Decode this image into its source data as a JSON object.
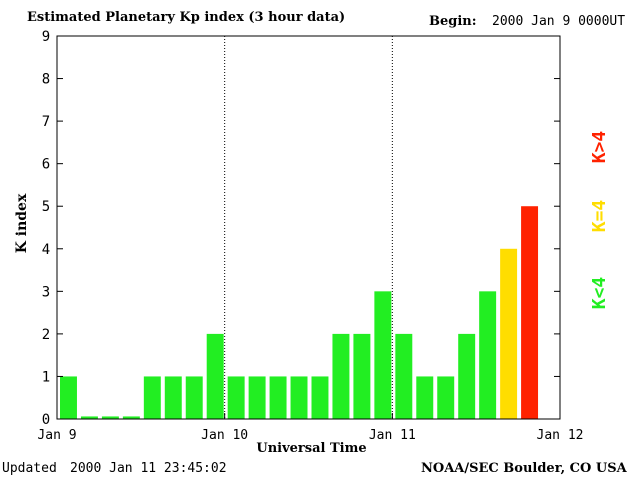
{
  "header": {
    "title": "Estimated Planetary Kp index (3 hour data)",
    "begin_label": "Begin:",
    "begin_value": "2000 Jan 9 0000UT"
  },
  "footer": {
    "updated_label": "Updated",
    "updated_value": "2000 Jan 11 23:45:02",
    "source": "NOAA/SEC Boulder, CO USA"
  },
  "legend": [
    {
      "label": "K<4",
      "color": "#22ee22"
    },
    {
      "label": "K=4",
      "color": "#ffdd00"
    },
    {
      "label": "K>4",
      "color": "#ff2200"
    }
  ],
  "chart_data": {
    "type": "bar",
    "title": "Estimated Planetary Kp index (3 hour data)",
    "xlabel": "Universal Time",
    "ylabel": "K index",
    "ylim": [
      0,
      9
    ],
    "yticks": [
      0,
      1,
      2,
      3,
      4,
      5,
      6,
      7,
      8,
      9
    ],
    "xticks": [
      "Jan 9",
      "Jan 10",
      "Jan 11",
      "Jan 12"
    ],
    "bars_per_day": 8,
    "values": [
      1,
      0,
      0,
      0,
      1,
      1,
      1,
      2,
      1,
      1,
      1,
      1,
      1,
      2,
      2,
      3,
      2,
      1,
      1,
      2,
      3,
      4,
      5
    ],
    "colors": {
      "low": "#22ee22",
      "equal": "#ffdd00",
      "high": "#ff2200"
    },
    "day_separators": [
      "Jan 10",
      "Jan 11"
    ]
  }
}
